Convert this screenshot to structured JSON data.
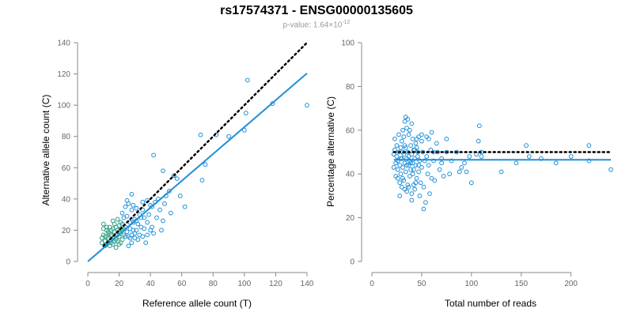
{
  "header": {
    "title": "rs17574371 - ENSG00000135605",
    "pvalue_prefix": "p-value: 1.64×10",
    "pvalue_exponent": "-12"
  },
  "colors": {
    "points": "#1f8fd8",
    "points_dense": "#2b9f84",
    "fit_line": "#1f8fd8",
    "reference_line": "#000000",
    "axis": "#888888",
    "tick_label": "#666666"
  },
  "chart_data": [
    {
      "type": "scatter",
      "title": "",
      "xlabel": "Reference allele count (T)",
      "ylabel": "Alternative allele count (C)",
      "xlim": [
        0,
        140
      ],
      "ylim": [
        0,
        140
      ],
      "x_ticks": [
        0,
        20,
        40,
        60,
        80,
        100,
        120,
        140
      ],
      "y_ticks": [
        0,
        20,
        40,
        60,
        80,
        100,
        120,
        140
      ],
      "grid": false,
      "reference_line": {
        "style": "dotted",
        "slope": 1.0,
        "intercept": 0,
        "x_range": [
          10,
          140
        ]
      },
      "fit_line": {
        "style": "solid",
        "slope": 0.86,
        "intercept": 0,
        "x_range": [
          0,
          140
        ]
      },
      "points": [
        [
          102,
          116
        ],
        [
          140,
          100
        ],
        [
          118,
          101
        ],
        [
          101,
          95
        ],
        [
          100,
          84
        ],
        [
          90,
          80
        ],
        [
          82,
          81
        ],
        [
          72,
          81
        ],
        [
          75,
          62
        ],
        [
          73,
          52
        ],
        [
          42,
          68
        ],
        [
          48,
          58
        ],
        [
          55,
          55
        ],
        [
          57,
          53
        ],
        [
          52,
          45
        ],
        [
          50,
          42
        ],
        [
          49,
          37
        ],
        [
          62,
          35
        ],
        [
          46,
          33
        ],
        [
          44,
          28
        ],
        [
          48,
          26
        ],
        [
          47,
          20
        ],
        [
          42,
          18
        ],
        [
          41,
          22
        ],
        [
          40,
          36
        ],
        [
          39,
          30
        ],
        [
          38,
          39
        ],
        [
          35,
          38
        ],
        [
          35,
          33
        ],
        [
          34,
          28
        ],
        [
          33,
          30
        ],
        [
          32,
          24
        ],
        [
          31,
          20
        ],
        [
          30,
          18
        ],
        [
          30,
          15
        ],
        [
          29,
          36
        ],
        [
          28,
          43
        ],
        [
          28,
          33
        ],
        [
          27,
          25
        ],
        [
          26,
          37
        ],
        [
          25,
          39
        ],
        [
          25,
          29
        ],
        [
          24,
          22
        ],
        [
          23,
          28
        ],
        [
          22,
          31
        ],
        [
          22,
          20
        ],
        [
          21,
          18
        ],
        [
          21,
          12
        ],
        [
          20,
          16
        ],
        [
          20,
          23
        ],
        [
          19,
          27
        ],
        [
          19,
          20
        ],
        [
          18,
          17
        ],
        [
          18,
          22
        ],
        [
          17,
          13
        ],
        [
          17,
          19
        ],
        [
          16,
          26
        ],
        [
          16,
          21
        ],
        [
          15,
          17
        ],
        [
          15,
          12
        ],
        [
          14,
          18
        ],
        [
          14,
          22
        ],
        [
          13,
          15
        ],
        [
          13,
          12
        ],
        [
          12,
          20
        ],
        [
          12,
          16
        ],
        [
          11,
          13
        ],
        [
          11,
          10
        ],
        [
          10,
          17
        ],
        [
          10,
          21
        ],
        [
          10,
          24
        ],
        [
          9,
          15
        ],
        [
          9,
          12
        ],
        [
          27,
          15
        ],
        [
          29,
          20
        ],
        [
          31,
          34
        ],
        [
          33,
          17
        ],
        [
          36,
          21
        ],
        [
          38,
          25
        ],
        [
          40,
          20
        ],
        [
          24,
          35
        ],
        [
          23,
          17
        ],
        [
          20,
          11
        ],
        [
          18,
          9
        ],
        [
          16,
          11
        ],
        [
          22,
          14
        ],
        [
          26,
          10
        ],
        [
          28,
          12
        ],
        [
          32,
          14
        ],
        [
          35,
          16
        ],
        [
          37,
          12
        ],
        [
          24,
          16
        ],
        [
          25,
          19
        ],
        [
          27,
          21
        ],
        [
          29,
          25
        ],
        [
          30,
          27
        ],
        [
          17,
          24
        ],
        [
          15,
          14
        ],
        [
          13,
          19
        ],
        [
          12,
          22
        ],
        [
          19,
          13
        ],
        [
          21,
          25
        ],
        [
          23,
          21
        ],
        [
          26,
          16
        ],
        [
          14,
          10
        ],
        [
          45,
          40
        ],
        [
          43,
          38
        ],
        [
          41,
          35
        ],
        [
          53,
          31
        ],
        [
          59,
          42
        ],
        [
          38,
          17
        ],
        [
          36,
          28
        ],
        [
          34,
          22
        ],
        [
          31,
          26
        ],
        [
          28,
          17
        ],
        [
          21,
          21
        ],
        [
          19,
          17
        ],
        [
          17,
          16
        ],
        [
          15,
          20
        ],
        [
          11,
          16
        ],
        [
          12,
          11
        ],
        [
          16,
          15
        ],
        [
          18,
          14
        ],
        [
          20,
          19
        ],
        [
          22,
          24
        ]
      ]
    },
    {
      "type": "scatter",
      "title": "",
      "xlabel": "Total number of reads",
      "ylabel": "Percentage alternative (C)",
      "xlim": [
        0,
        240
      ],
      "ylim": [
        0,
        100
      ],
      "x_ticks": [
        0,
        50,
        100,
        150,
        200
      ],
      "y_ticks": [
        0,
        20,
        40,
        60,
        80,
        100
      ],
      "grid": false,
      "reference_line": {
        "style": "dotted",
        "y": 50,
        "x_range": [
          22,
          240
        ]
      },
      "fit_line": {
        "style": "solid",
        "y": 46.5,
        "x_range": [
          22,
          240
        ]
      },
      "points": [
        [
          240,
          42
        ],
        [
          218,
          46
        ],
        [
          218,
          53
        ],
        [
          200,
          48
        ],
        [
          185,
          45
        ],
        [
          170,
          47
        ],
        [
          158,
          48
        ],
        [
          155,
          53
        ],
        [
          145,
          45
        ],
        [
          130,
          41
        ],
        [
          110,
          48
        ],
        [
          108,
          62
        ],
        [
          107,
          55
        ],
        [
          105,
          49
        ],
        [
          100,
          36
        ],
        [
          98,
          48
        ],
        [
          93,
          45
        ],
        [
          88,
          41
        ],
        [
          85,
          50
        ],
        [
          80,
          46
        ],
        [
          75,
          50
        ],
        [
          72,
          39
        ],
        [
          70,
          45
        ],
        [
          68,
          42
        ],
        [
          66,
          50
        ],
        [
          65,
          54
        ],
        [
          63,
          37
        ],
        [
          62,
          46
        ],
        [
          60,
          38
        ],
        [
          59,
          51
        ],
        [
          58,
          31
        ],
        [
          57,
          44
        ],
        [
          56,
          40
        ],
        [
          55,
          48
        ],
        [
          55,
          57
        ],
        [
          54,
          27
        ],
        [
          53,
          46
        ],
        [
          52,
          24
        ],
        [
          52,
          34
        ],
        [
          51,
          50
        ],
        [
          50,
          43
        ],
        [
          50,
          55
        ],
        [
          49,
          36
        ],
        [
          48,
          46
        ],
        [
          48,
          30
        ],
        [
          47,
          57
        ],
        [
          47,
          41
        ],
        [
          46,
          50
        ],
        [
          46,
          48
        ],
        [
          45,
          52
        ],
        [
          45,
          38
        ],
        [
          44,
          44
        ],
        [
          44,
          54
        ],
        [
          43,
          47
        ],
        [
          43,
          33
        ],
        [
          42,
          35
        ],
        [
          42,
          51
        ],
        [
          41,
          56
        ],
        [
          41,
          45
        ],
        [
          40,
          28
        ],
        [
          40,
          49
        ],
        [
          39,
          42
        ],
        [
          39,
          53
        ],
        [
          38,
          46
        ],
        [
          38,
          39
        ],
        [
          37,
          58
        ],
        [
          37,
          44
        ],
        [
          36,
          50
        ],
        [
          36,
          35
        ],
        [
          35,
          47
        ],
        [
          35,
          61
        ],
        [
          34,
          41
        ],
        [
          34,
          52
        ],
        [
          33,
          45
        ],
        [
          33,
          33
        ],
        [
          32,
          49
        ],
        [
          32,
          57
        ],
        [
          31,
          43
        ],
        [
          31,
          38
        ],
        [
          30,
          55
        ],
        [
          30,
          47
        ],
        [
          29,
          40
        ],
        [
          29,
          52
        ],
        [
          28,
          44
        ],
        [
          28,
          36
        ],
        [
          27,
          50
        ],
        [
          27,
          58
        ],
        [
          26,
          46
        ],
        [
          26,
          42
        ],
        [
          25,
          53
        ],
        [
          25,
          48
        ],
        [
          24,
          39
        ],
        [
          24,
          45
        ],
        [
          23,
          51
        ],
        [
          23,
          56
        ],
        [
          22,
          43
        ],
        [
          22,
          49
        ],
        [
          34,
          66
        ],
        [
          36,
          65
        ],
        [
          33,
          64
        ],
        [
          40,
          63
        ],
        [
          31,
          60
        ],
        [
          38,
          60
        ],
        [
          45,
          56
        ],
        [
          57,
          56
        ],
        [
          50,
          58
        ],
        [
          60,
          59
        ],
        [
          62,
          50
        ],
        [
          70,
          47
        ],
        [
          75,
          56
        ],
        [
          78,
          40
        ],
        [
          90,
          43
        ],
        [
          95,
          41
        ],
        [
          110,
          50
        ],
        [
          26,
          38
        ],
        [
          28,
          30
        ],
        [
          30,
          34
        ],
        [
          32,
          37
        ],
        [
          35,
          32
        ],
        [
          37,
          34
        ],
        [
          40,
          31
        ],
        [
          42,
          42
        ],
        [
          44,
          36
        ],
        [
          29,
          47
        ],
        [
          31,
          50
        ],
        [
          33,
          53
        ],
        [
          35,
          44
        ],
        [
          37,
          48
        ],
        [
          39,
          45
        ],
        [
          41,
          40
        ],
        [
          43,
          51
        ],
        [
          47,
          44
        ]
      ]
    }
  ]
}
